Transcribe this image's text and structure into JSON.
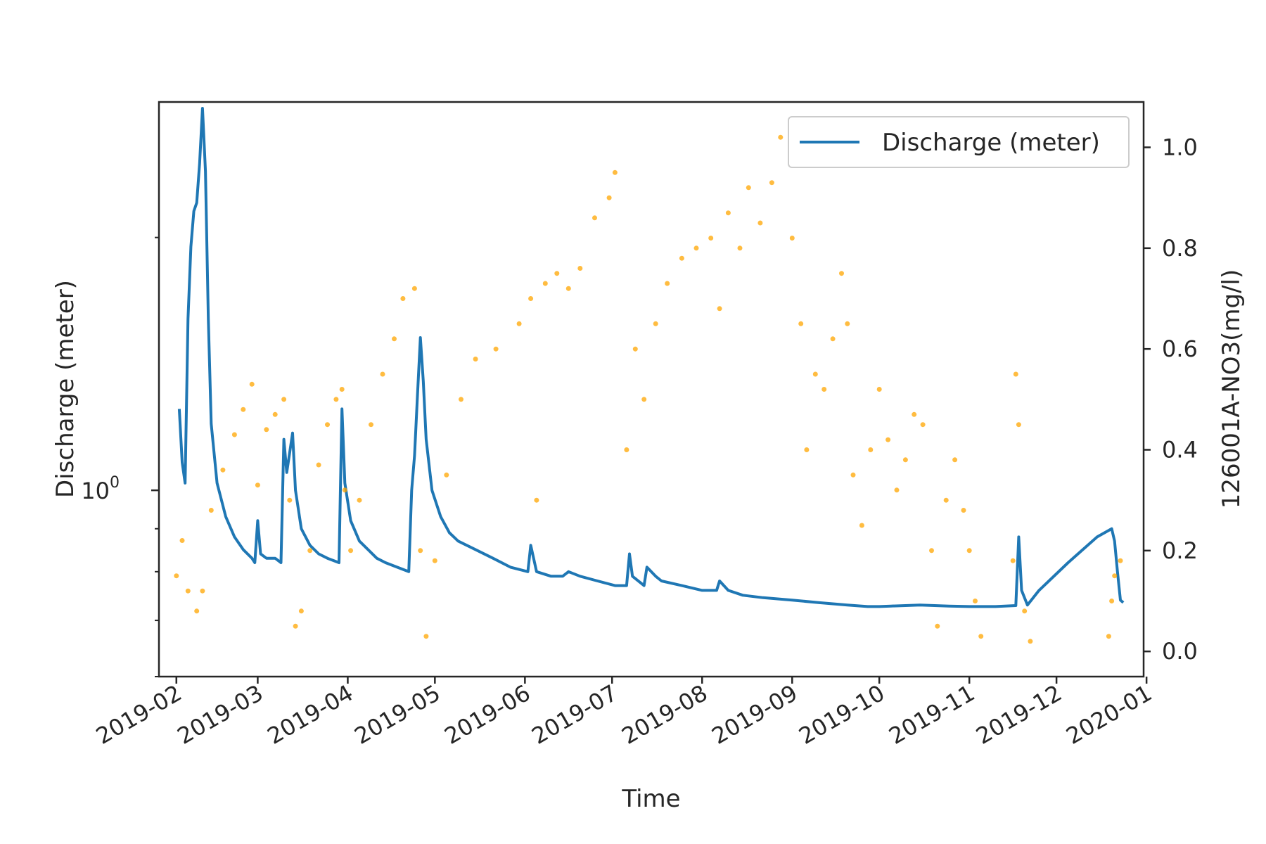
{
  "chart_data": {
    "type": "line+scatter",
    "title": "",
    "xlabel": "Time",
    "ylabel_left": "Discharge (meter)",
    "ylabel_right": "126001A-NO3(mg/l)",
    "left_scale": "log",
    "left_ylim": [
      0.6,
      2.9
    ],
    "left_yticks": [
      {
        "value": 1.0,
        "label": "10",
        "exponent": "0"
      }
    ],
    "right_ylim": [
      -0.05,
      1.09
    ],
    "right_yticks": [
      "0.0",
      "0.2",
      "0.4",
      "0.6",
      "0.8",
      "1.0"
    ],
    "xlim": [
      "2019-01-26",
      "2019-12-31"
    ],
    "xticks": [
      "2019-02",
      "2019-03",
      "2019-04",
      "2019-05",
      "2019-06",
      "2019-07",
      "2019-08",
      "2019-09",
      "2019-10",
      "2019-11",
      "2019-12",
      "2020-01"
    ],
    "grid": false,
    "legend": {
      "position": "top-right",
      "entries": [
        "Discharge (meter)"
      ]
    },
    "colors": {
      "discharge": "#1f77b4",
      "no3": "#ffa500",
      "axes": "#262626"
    },
    "series": [
      {
        "name": "Discharge (meter)",
        "kind": "line",
        "axis": "left",
        "points": [
          [
            "2019-02-02",
            1.25
          ],
          [
            "2019-02-03",
            1.08
          ],
          [
            "2019-02-04",
            1.02
          ],
          [
            "2019-02-05",
            1.6
          ],
          [
            "2019-02-06",
            1.95
          ],
          [
            "2019-02-07",
            2.15
          ],
          [
            "2019-02-08",
            2.2
          ],
          [
            "2019-02-09",
            2.45
          ],
          [
            "2019-02-10",
            2.85
          ],
          [
            "2019-02-11",
            2.4
          ],
          [
            "2019-02-12",
            1.6
          ],
          [
            "2019-02-13",
            1.2
          ],
          [
            "2019-02-15",
            1.02
          ],
          [
            "2019-02-18",
            0.93
          ],
          [
            "2019-02-21",
            0.88
          ],
          [
            "2019-02-24",
            0.85
          ],
          [
            "2019-02-27",
            0.83
          ],
          [
            "2019-02-28",
            0.82
          ],
          [
            "2019-03-01",
            0.92
          ],
          [
            "2019-03-02",
            0.84
          ],
          [
            "2019-03-04",
            0.83
          ],
          [
            "2019-03-07",
            0.83
          ],
          [
            "2019-03-09",
            0.82
          ],
          [
            "2019-03-10",
            1.15
          ],
          [
            "2019-03-11",
            1.05
          ],
          [
            "2019-03-13",
            1.17
          ],
          [
            "2019-03-14",
            1.0
          ],
          [
            "2019-03-16",
            0.9
          ],
          [
            "2019-03-19",
            0.86
          ],
          [
            "2019-03-22",
            0.84
          ],
          [
            "2019-03-25",
            0.83
          ],
          [
            "2019-03-29",
            0.82
          ],
          [
            "2019-03-30",
            1.25
          ],
          [
            "2019-03-31",
            1.02
          ],
          [
            "2019-04-02",
            0.92
          ],
          [
            "2019-04-05",
            0.87
          ],
          [
            "2019-04-08",
            0.85
          ],
          [
            "2019-04-11",
            0.83
          ],
          [
            "2019-04-14",
            0.82
          ],
          [
            "2019-04-18",
            0.81
          ],
          [
            "2019-04-22",
            0.8
          ],
          [
            "2019-04-23",
            1.0
          ],
          [
            "2019-04-24",
            1.1
          ],
          [
            "2019-04-25",
            1.3
          ],
          [
            "2019-04-26",
            1.52
          ],
          [
            "2019-04-27",
            1.35
          ],
          [
            "2019-04-28",
            1.15
          ],
          [
            "2019-04-30",
            1.0
          ],
          [
            "2019-05-03",
            0.93
          ],
          [
            "2019-05-06",
            0.89
          ],
          [
            "2019-05-09",
            0.87
          ],
          [
            "2019-05-15",
            0.85
          ],
          [
            "2019-05-21",
            0.83
          ],
          [
            "2019-05-27",
            0.81
          ],
          [
            "2019-06-02",
            0.8
          ],
          [
            "2019-06-03",
            0.86
          ],
          [
            "2019-06-05",
            0.8
          ],
          [
            "2019-06-10",
            0.79
          ],
          [
            "2019-06-14",
            0.79
          ],
          [
            "2019-06-16",
            0.8
          ],
          [
            "2019-06-20",
            0.79
          ],
          [
            "2019-06-26",
            0.78
          ],
          [
            "2019-07-02",
            0.77
          ],
          [
            "2019-07-06",
            0.77
          ],
          [
            "2019-07-07",
            0.84
          ],
          [
            "2019-07-08",
            0.79
          ],
          [
            "2019-07-12",
            0.77
          ],
          [
            "2019-07-13",
            0.81
          ],
          [
            "2019-07-16",
            0.79
          ],
          [
            "2019-07-18",
            0.78
          ],
          [
            "2019-07-25",
            0.77
          ],
          [
            "2019-08-01",
            0.76
          ],
          [
            "2019-08-06",
            0.76
          ],
          [
            "2019-08-07",
            0.78
          ],
          [
            "2019-08-10",
            0.76
          ],
          [
            "2019-08-15",
            0.75
          ],
          [
            "2019-08-22",
            0.745
          ],
          [
            "2019-09-01",
            0.74
          ],
          [
            "2019-09-10",
            0.735
          ],
          [
            "2019-09-20",
            0.73
          ],
          [
            "2019-09-27",
            0.727
          ],
          [
            "2019-10-01",
            0.727
          ],
          [
            "2019-10-05",
            0.728
          ],
          [
            "2019-10-10",
            0.729
          ],
          [
            "2019-10-15",
            0.73
          ],
          [
            "2019-10-20",
            0.729
          ],
          [
            "2019-10-25",
            0.728
          ],
          [
            "2019-11-01",
            0.727
          ],
          [
            "2019-11-10",
            0.727
          ],
          [
            "2019-11-17",
            0.729
          ],
          [
            "2019-11-18",
            0.88
          ],
          [
            "2019-11-19",
            0.76
          ],
          [
            "2019-11-21",
            0.73
          ],
          [
            "2019-11-25",
            0.76
          ],
          [
            "2019-12-05",
            0.82
          ],
          [
            "2019-12-15",
            0.88
          ],
          [
            "2019-12-20",
            0.9
          ],
          [
            "2019-12-21",
            0.87
          ],
          [
            "2019-12-22",
            0.8
          ],
          [
            "2019-12-23",
            0.74
          ],
          [
            "2019-12-24",
            0.735
          ]
        ]
      },
      {
        "name": "126001A-NO3",
        "kind": "scatter",
        "axis": "right",
        "points": [
          [
            "2019-02-01",
            0.15
          ],
          [
            "2019-02-03",
            0.22
          ],
          [
            "2019-02-05",
            0.12
          ],
          [
            "2019-02-08",
            0.08
          ],
          [
            "2019-02-10",
            0.12
          ],
          [
            "2019-02-13",
            0.28
          ],
          [
            "2019-02-17",
            0.36
          ],
          [
            "2019-02-21",
            0.43
          ],
          [
            "2019-02-24",
            0.48
          ],
          [
            "2019-02-27",
            0.53
          ],
          [
            "2019-03-01",
            0.33
          ],
          [
            "2019-03-04",
            0.44
          ],
          [
            "2019-03-07",
            0.47
          ],
          [
            "2019-03-10",
            0.5
          ],
          [
            "2019-03-12",
            0.3
          ],
          [
            "2019-03-14",
            0.05
          ],
          [
            "2019-03-16",
            0.08
          ],
          [
            "2019-03-19",
            0.2
          ],
          [
            "2019-03-22",
            0.37
          ],
          [
            "2019-03-25",
            0.45
          ],
          [
            "2019-03-28",
            0.5
          ],
          [
            "2019-03-30",
            0.52
          ],
          [
            "2019-03-31",
            0.32
          ],
          [
            "2019-04-02",
            0.2
          ],
          [
            "2019-04-05",
            0.3
          ],
          [
            "2019-04-09",
            0.45
          ],
          [
            "2019-04-13",
            0.55
          ],
          [
            "2019-04-17",
            0.62
          ],
          [
            "2019-04-20",
            0.7
          ],
          [
            "2019-04-24",
            0.72
          ],
          [
            "2019-04-26",
            0.2
          ],
          [
            "2019-04-28",
            0.03
          ],
          [
            "2019-05-01",
            0.18
          ],
          [
            "2019-05-05",
            0.35
          ],
          [
            "2019-05-10",
            0.5
          ],
          [
            "2019-05-15",
            0.58
          ],
          [
            "2019-05-22",
            0.6
          ],
          [
            "2019-05-30",
            0.65
          ],
          [
            "2019-06-03",
            0.7
          ],
          [
            "2019-06-05",
            0.3
          ],
          [
            "2019-06-08",
            0.73
          ],
          [
            "2019-06-12",
            0.75
          ],
          [
            "2019-06-16",
            0.72
          ],
          [
            "2019-06-20",
            0.76
          ],
          [
            "2019-06-25",
            0.86
          ],
          [
            "2019-06-30",
            0.9
          ],
          [
            "2019-07-02",
            0.95
          ],
          [
            "2019-07-06",
            0.4
          ],
          [
            "2019-07-09",
            0.6
          ],
          [
            "2019-07-12",
            0.5
          ],
          [
            "2019-07-16",
            0.65
          ],
          [
            "2019-07-20",
            0.73
          ],
          [
            "2019-07-25",
            0.78
          ],
          [
            "2019-07-30",
            0.8
          ],
          [
            "2019-08-04",
            0.82
          ],
          [
            "2019-08-07",
            0.68
          ],
          [
            "2019-08-10",
            0.87
          ],
          [
            "2019-08-14",
            0.8
          ],
          [
            "2019-08-17",
            0.92
          ],
          [
            "2019-08-21",
            0.85
          ],
          [
            "2019-08-25",
            0.93
          ],
          [
            "2019-08-28",
            1.02
          ],
          [
            "2019-09-01",
            0.82
          ],
          [
            "2019-09-04",
            0.65
          ],
          [
            "2019-09-06",
            0.4
          ],
          [
            "2019-09-09",
            0.55
          ],
          [
            "2019-09-12",
            0.52
          ],
          [
            "2019-09-15",
            0.62
          ],
          [
            "2019-09-18",
            0.75
          ],
          [
            "2019-09-20",
            0.65
          ],
          [
            "2019-09-22",
            0.35
          ],
          [
            "2019-09-25",
            0.25
          ],
          [
            "2019-09-28",
            0.4
          ],
          [
            "2019-10-01",
            0.52
          ],
          [
            "2019-10-04",
            0.42
          ],
          [
            "2019-10-07",
            0.32
          ],
          [
            "2019-10-10",
            0.38
          ],
          [
            "2019-10-13",
            0.47
          ],
          [
            "2019-10-16",
            0.45
          ],
          [
            "2019-10-19",
            0.2
          ],
          [
            "2019-10-21",
            0.05
          ],
          [
            "2019-10-24",
            0.3
          ],
          [
            "2019-10-27",
            0.38
          ],
          [
            "2019-10-30",
            0.28
          ],
          [
            "2019-11-01",
            0.2
          ],
          [
            "2019-11-03",
            0.1
          ],
          [
            "2019-11-05",
            0.03
          ],
          [
            "2019-11-16",
            0.18
          ],
          [
            "2019-11-17",
            0.55
          ],
          [
            "2019-11-18",
            0.45
          ],
          [
            "2019-11-20",
            0.08
          ],
          [
            "2019-11-22",
            0.02
          ],
          [
            "2019-12-19",
            0.03
          ],
          [
            "2019-12-20",
            0.1
          ],
          [
            "2019-12-21",
            0.15
          ],
          [
            "2019-12-23",
            0.18
          ]
        ]
      }
    ]
  }
}
